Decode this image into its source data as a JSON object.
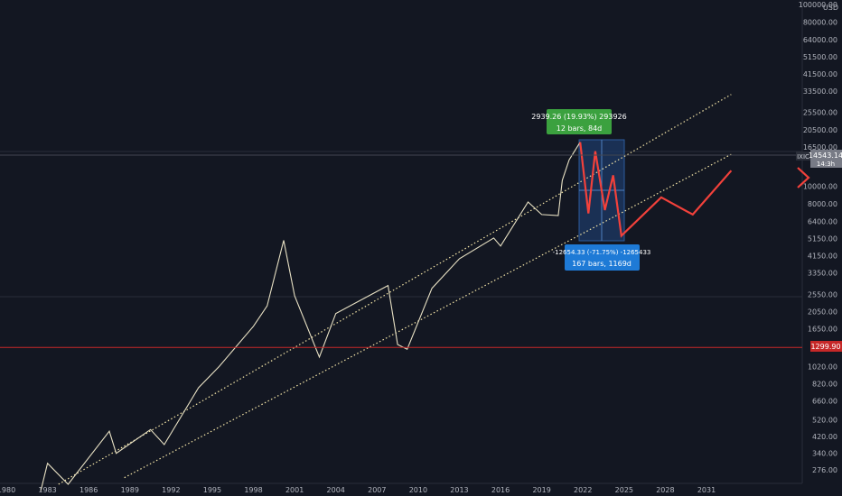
{
  "chart": {
    "currency": "USD",
    "symbol": "IXIC",
    "last_price": "14543.14",
    "countdown": "14:3h",
    "horizontal_line_label": "1299.90"
  },
  "axis": {
    "y_labels": [
      "100000.00",
      "80000.00",
      "64000.00",
      "51500.00",
      "41500.00",
      "33500.00",
      "25500.00",
      "20500.00",
      "16500.00",
      "10000.00",
      "8000.00",
      "6400.00",
      "5150.00",
      "4150.00",
      "3350.00",
      "2550.00",
      "2050.00",
      "1650.00",
      "1020.00",
      "820.00",
      "660.00",
      "520.00",
      "420.00",
      "340.00",
      "276.00"
    ],
    "x_labels": [
      "1980",
      "1983",
      "1986",
      "1989",
      "1992",
      "1995",
      "1998",
      "2001",
      "2004",
      "2007",
      "2010",
      "2013",
      "2016",
      "2019",
      "2022",
      "2025",
      "2028",
      "2031"
    ]
  },
  "measure_up": {
    "line1": "2939.26 (19.93%) 293926",
    "line2": "12 bars, 84d"
  },
  "measure_down": {
    "line1": "-12654.33 (-71.75%) -1265433",
    "line2": "167 bars, 1169d"
  },
  "colors": {
    "background": "#131722",
    "price_line": "#e8e1c4",
    "channel_line": "#f5e6a8",
    "projection": "#f2413b",
    "horizontal_line": "#c62828",
    "measure_green": "#3ba13f",
    "measure_blue": "#1e7ad6",
    "box_fill": "#1e3a66"
  },
  "chart_data": {
    "type": "line",
    "title": "",
    "xlabel": "",
    "ylabel": "",
    "y_scale": "log",
    "ylim": [
      250,
      100000
    ],
    "xlim": [
      1980,
      2033
    ],
    "series": [
      {
        "x": [
          1982.5,
          1983,
          1984.5,
          1987.5,
          1988,
          1990.5,
          1991.5,
          1994,
          1995.5,
          1998,
          1999,
          2000.2,
          2001,
          2002.8,
          2004,
          2007.8,
          2008.5,
          2009.2,
          2011,
          2013,
          2015.5,
          2016,
          2018,
          2019,
          2020.2,
          2020.5,
          2021,
          2021.8
        ],
        "values": [
          210,
          300,
          230,
          450,
          340,
          460,
          380,
          780,
          1020,
          1700,
          2200,
          5050,
          2500,
          1150,
          2000,
          2850,
          1350,
          1270,
          2750,
          4000,
          5200,
          4700,
          8200,
          7000,
          6900,
          10800,
          14000,
          17500
        ]
      },
      {
        "name": "",
        "x": [
          2021.8,
          2022.4,
          2022.9,
          2023.6,
          2024.2,
          2024.8,
          2027.7,
          2030,
          2032.8
        ],
        "values": [
          17500,
          7100,
          15600,
          7400,
          11500,
          5350,
          8700,
          7000,
          12200
        ]
      }
    ],
    "channel": {
      "upper": {
        "x": [
          1983.8,
          2032.8
        ],
        "values": [
          230,
          32000
        ]
      },
      "lower": {
        "x": [
          1988.6,
          2032.8
        ],
        "values": [
          250,
          15000
        ]
      }
    },
    "horizontal_line_value": 1299.9,
    "grid": false
  }
}
